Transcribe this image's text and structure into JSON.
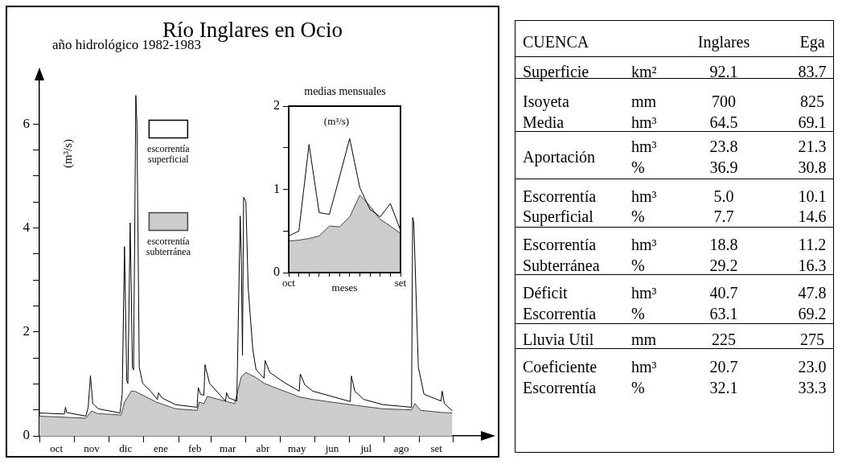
{
  "chart_data": [
    {
      "type": "line",
      "title": "Río Inglares en Ocio",
      "subtitle": "año hidrológico 1982-1983",
      "ylabel": "(m³/s)",
      "xlim": [
        "1982-10-01",
        "1983-10-28"
      ],
      "ylim": [
        0,
        6.9
      ],
      "xticks": [
        {
          "value": "1982-10-01",
          "label": null
        },
        {
          "value": "1982-10-16",
          "label": "oct"
        },
        {
          "value": "1982-11-01",
          "label": null
        },
        {
          "value": "1982-11-16",
          "label": "nov"
        },
        {
          "value": "1982-12-01",
          "label": null
        },
        {
          "value": "1982-12-16",
          "label": "dic"
        },
        {
          "value": "1983-01-01",
          "label": null
        },
        {
          "value": "1983-01-16",
          "label": "ene"
        },
        {
          "value": "1983-02-01",
          "label": null
        },
        {
          "value": "1983-02-15",
          "label": "feb"
        },
        {
          "value": "1983-03-01",
          "label": null
        },
        {
          "value": "1983-03-16",
          "label": "mar"
        },
        {
          "value": "1983-04-01",
          "label": null
        },
        {
          "value": "1983-04-16",
          "label": "abr"
        },
        {
          "value": "1983-05-01",
          "label": null
        },
        {
          "value": "1983-05-16",
          "label": "may"
        },
        {
          "value": "1983-06-01",
          "label": null
        },
        {
          "value": "1983-06-16",
          "label": "jun"
        },
        {
          "value": "1983-07-01",
          "label": null
        },
        {
          "value": "1983-07-16",
          "label": "jul"
        },
        {
          "value": "1983-08-01",
          "label": null
        },
        {
          "value": "1983-08-16",
          "label": "ago"
        },
        {
          "value": "1983-09-01",
          "label": null
        },
        {
          "value": "1983-09-16",
          "label": "set"
        },
        {
          "value": "1983-10-01",
          "label": null
        }
      ],
      "yticks": [
        0,
        {
          "value": 0.5,
          "label": null
        },
        {
          "value": 1,
          "label": null
        },
        {
          "value": 1.5,
          "label": null
        },
        2,
        {
          "value": 2.5,
          "label": null
        },
        {
          "value": 3,
          "label": null
        },
        {
          "value": 3.5,
          "label": null
        },
        4,
        {
          "value": 4.5,
          "label": null
        },
        {
          "value": 5,
          "label": null
        },
        {
          "value": 5.5,
          "label": null
        },
        6
      ],
      "legend": "top",
      "series": [
        {
          "name": "escorrentía superficial",
          "type": "line",
          "color": "#000000",
          "x": [
            "1982-10-01",
            "1982-10-23",
            "1982-10-24",
            "1982-10-25",
            "1982-11-11",
            "1982-11-13",
            "1982-11-15",
            "1982-11-17",
            "1982-11-22",
            "1982-12-11",
            "1982-12-13",
            "1982-12-15",
            "1982-12-17",
            "1982-12-18",
            "1982-12-20",
            "1982-12-22",
            "1982-12-23",
            "1982-12-25",
            "1982-12-26",
            "1982-12-28",
            "1982-12-31",
            "1983-01-07",
            "1983-01-13",
            "1983-01-14",
            "1983-01-17",
            "1983-01-29",
            "1983-02-17",
            "1983-02-18",
            "1983-02-20",
            "1983-02-23",
            "1983-02-24",
            "1983-02-25",
            "1983-02-28",
            "1983-03-14",
            "1983-03-15",
            "1983-03-17",
            "1983-03-24",
            "1983-03-27",
            "1983-03-28",
            "1983-03-29",
            "1983-03-30",
            "1983-04-01",
            "1983-04-03",
            "1983-04-07",
            "1983-04-10",
            "1983-04-17",
            "1983-04-18",
            "1983-04-22",
            "1983-05-06",
            "1983-05-18",
            "1983-05-19",
            "1983-05-23",
            "1983-05-30",
            "1983-07-02",
            "1983-07-03",
            "1983-07-06",
            "1983-07-14",
            "1983-07-31",
            "1983-08-25",
            "1983-08-26",
            "1983-08-27",
            "1983-08-31",
            "1983-09-05",
            "1983-09-20",
            "1983-09-21",
            "1983-09-23",
            "1983-09-30"
          ],
          "values": [
            0.44,
            0.42,
            0.55,
            0.45,
            0.38,
            0.55,
            1.16,
            0.62,
            0.52,
            0.44,
            0.8,
            3.64,
            1.06,
            1.01,
            4.1,
            1.32,
            1.27,
            6.55,
            5.96,
            1.32,
            1.01,
            0.86,
            0.7,
            0.83,
            0.73,
            0.6,
            0.55,
            0.93,
            0.8,
            0.78,
            1.37,
            1.27,
            1.01,
            0.67,
            0.83,
            0.73,
            0.67,
            4.23,
            3.38,
            1.55,
            4.59,
            4.51,
            2.86,
            1.68,
            1.27,
            1.11,
            1.45,
            1.22,
            1.01,
            0.86,
            1.19,
            0.98,
            0.86,
            0.66,
            1.15,
            0.86,
            0.7,
            0.6,
            0.55,
            4.2,
            4.1,
            1.32,
            0.8,
            0.67,
            0.86,
            0.62,
            0.48
          ]
        },
        {
          "name": "escorrentía subterránea",
          "type": "area",
          "color": "#cccccc",
          "x": [
            "1982-10-01",
            "1982-11-11",
            "1982-11-16",
            "1982-11-21",
            "1982-12-12",
            "1982-12-15",
            "1982-12-21",
            "1982-12-24",
            "1983-01-12",
            "1983-01-29",
            "1983-02-17",
            "1983-02-19",
            "1983-02-23",
            "1983-02-26",
            "1983-03-22",
            "1983-03-28",
            "1983-04-01",
            "1983-04-10",
            "1983-04-17",
            "1983-05-18",
            "1983-05-30",
            "1983-07-02",
            "1983-07-31",
            "1983-08-25",
            "1983-08-28",
            "1983-09-02",
            "1983-09-21",
            "1983-09-30"
          ],
          "values": [
            0.38,
            0.34,
            0.48,
            0.43,
            0.4,
            0.65,
            0.86,
            0.86,
            0.65,
            0.52,
            0.49,
            0.65,
            0.62,
            0.76,
            0.62,
            1.14,
            1.22,
            1.12,
            1.01,
            0.75,
            0.7,
            0.6,
            0.52,
            0.5,
            0.62,
            0.49,
            0.45,
            0.44
          ]
        }
      ]
    },
    {
      "type": "line",
      "title": "medias mensuales",
      "xlabel": "meses",
      "ylabel": "(m³/s)",
      "categories": [
        "oct",
        null,
        null,
        null,
        null,
        null,
        null,
        null,
        null,
        null,
        null,
        "set"
      ],
      "ylim": [
        0,
        2
      ],
      "yticks": [
        0,
        {
          "value": 0.5,
          "label": null
        },
        1,
        {
          "value": 1.5,
          "label": null
        },
        2
      ],
      "series": [
        {
          "type": "line",
          "color": "#000000",
          "values": [
            0.44,
            0.5,
            1.54,
            0.72,
            0.7,
            1.15,
            1.61,
            1.02,
            0.76,
            0.67,
            0.83,
            0.51
          ]
        },
        {
          "type": "area",
          "color": "#cccccc",
          "values": [
            0.38,
            0.39,
            0.41,
            0.44,
            0.56,
            0.55,
            0.67,
            0.93,
            0.8,
            0.64,
            0.56,
            0.47
          ]
        }
      ]
    },
    {
      "type": "other",
      "annotations": [
        "CUENCA",
        "Inglares",
        "Ega",
        "Superficie",
        "km²",
        "92.1",
        "83.7",
        "Isoyeta",
        "mm",
        "700",
        "825",
        "Media",
        "hm³",
        "64.5",
        "69.1",
        "Aportación",
        "hm³",
        "23.8",
        "21.3",
        "%",
        "36.9",
        "30.8",
        "Escorrentía",
        "hm³",
        "5.0",
        "10.1",
        "Superficial",
        "%",
        "7.7",
        "14.6",
        "Escorrentía",
        "hm³",
        "18.8",
        "11.2",
        "Subterránea",
        "%",
        "29.2",
        "16.3",
        "Déficit",
        "hm³",
        "40.7",
        "47.8",
        "Escorrentía",
        "%",
        "63.1",
        "69.2",
        "Lluvia Util",
        "mm",
        "225",
        "275",
        "Coeficiente",
        "hm³",
        "20.7",
        "23.0",
        "Escorrentía",
        "%",
        "32.1",
        "33.3"
      ]
    }
  ]
}
